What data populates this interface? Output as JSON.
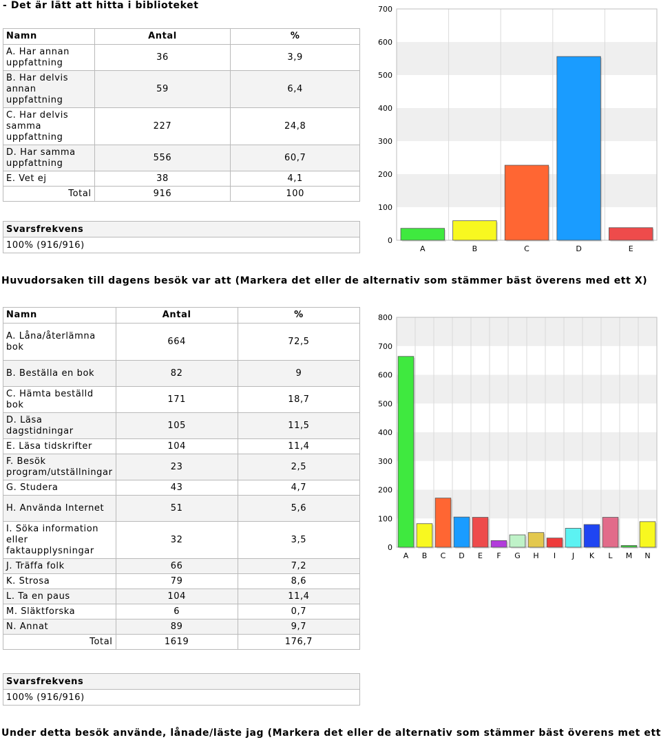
{
  "section1": {
    "heading": "- Det är lätt att hitta i biblioteket",
    "columns": [
      "Namn",
      "Antal",
      "%"
    ],
    "rows": [
      {
        "name": "A. Har annan uppfattning",
        "antal": "36",
        "pct": "3,9"
      },
      {
        "name": "B. Har delvis annan uppfattning",
        "antal": "59",
        "pct": "6,4"
      },
      {
        "name": "C. Har delvis samma uppfattning",
        "antal": "227",
        "pct": "24,8"
      },
      {
        "name": "D. Har samma uppfattning",
        "antal": "556",
        "pct": "60,7"
      },
      {
        "name": "E. Vet ej",
        "antal": "38",
        "pct": "4,1"
      }
    ],
    "total": {
      "label": "Total",
      "antal": "916",
      "pct": "100"
    },
    "response": {
      "label": "Svarsfrekvens",
      "value": "100% (916/916)"
    }
  },
  "section2": {
    "heading": "Huvudorsaken till dagens besök var att (Markera det eller de alternativ som stämmer bäst överens med ett X)",
    "columns": [
      "Namn",
      "Antal",
      "%"
    ],
    "rows": [
      {
        "name": "A. Låna/återlämna bok",
        "antal": "664",
        "pct": "72,5"
      },
      {
        "name": "B. Beställa en bok",
        "antal": "82",
        "pct": "9"
      },
      {
        "name": "C. Hämta beställd bok",
        "antal": "171",
        "pct": "18,7"
      },
      {
        "name": "D. Läsa dagstidningar",
        "antal": "105",
        "pct": "11,5"
      },
      {
        "name": "E. Läsa tidskrifter",
        "antal": "104",
        "pct": "11,4"
      },
      {
        "name": "F. Besök program/utställningar",
        "antal": "23",
        "pct": "2,5"
      },
      {
        "name": "G. Studera",
        "antal": "43",
        "pct": "4,7"
      },
      {
        "name": "H. Använda Internet",
        "antal": "51",
        "pct": "5,6"
      },
      {
        "name": "I. Söka information eller faktaupplysningar",
        "antal": "32",
        "pct": "3,5"
      },
      {
        "name": "J. Träffa folk",
        "antal": "66",
        "pct": "7,2"
      },
      {
        "name": "K. Strosa",
        "antal": "79",
        "pct": "8,6"
      },
      {
        "name": "L. Ta en paus",
        "antal": "104",
        "pct": "11,4"
      },
      {
        "name": "M. Släktforska",
        "antal": "6",
        "pct": "0,7"
      },
      {
        "name": "N. Annat",
        "antal": "89",
        "pct": "9,7"
      }
    ],
    "total": {
      "label": "Total",
      "antal": "1619",
      "pct": "176,7"
    },
    "response": {
      "label": "Svarsfrekvens",
      "value": "100% (916/916)"
    }
  },
  "section3": {
    "heading": "Under detta besök använde, lånade/läste jag (Markera det eller de alternativ som stämmer bäst överens met ett X)"
  },
  "chart_data": [
    {
      "type": "bar",
      "categories": [
        "A",
        "B",
        "C",
        "D",
        "E"
      ],
      "values": [
        36,
        59,
        227,
        556,
        38
      ],
      "colors": [
        "#3fe93f",
        "#f8f820",
        "#ff6633",
        "#1a9cff",
        "#ee4b4b"
      ],
      "ylim": [
        0,
        700
      ],
      "yticks": [
        0,
        100,
        200,
        300,
        400,
        500,
        600,
        700
      ],
      "grid": true
    },
    {
      "type": "bar",
      "categories": [
        "A",
        "B",
        "C",
        "D",
        "E",
        "F",
        "G",
        "H",
        "I",
        "J",
        "K",
        "L",
        "M",
        "N"
      ],
      "values": [
        664,
        82,
        171,
        105,
        104,
        23,
        43,
        51,
        32,
        66,
        79,
        104,
        6,
        89
      ],
      "colors": [
        "#3fe93f",
        "#f8f820",
        "#ff6633",
        "#1a9cff",
        "#ee4b4b",
        "#b23bdb",
        "#bff2c8",
        "#e3c84e",
        "#ee3b3b",
        "#5cf2f2",
        "#1f45f2",
        "#e26b8a",
        "#3ccc3c",
        "#f8f820"
      ],
      "ylim": [
        0,
        800
      ],
      "yticks": [
        0,
        100,
        200,
        300,
        400,
        500,
        600,
        700,
        800
      ],
      "grid": true
    }
  ]
}
